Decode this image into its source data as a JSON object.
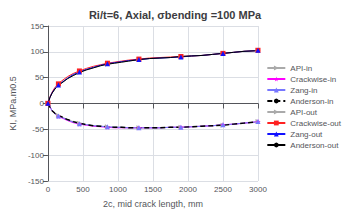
{
  "chart_data": {
    "type": "line",
    "title": "Ri/t=6, Axial, σbending =100 MPa",
    "xlabel": "2c, mid crack length, mm",
    "ylabel": "KI, MPa.m0.5",
    "x": [
      1,
      30,
      60,
      100,
      150,
      200,
      280,
      360,
      450,
      550,
      650,
      750,
      850,
      950,
      1050,
      1150,
      1300,
      1450,
      1600,
      1750,
      1900,
      2050,
      2200,
      2350,
      2500,
      2650,
      2800,
      2950,
      3000
    ],
    "series": [
      {
        "name": "API-in",
        "color": "#aaaaaa",
        "marker": "triangle_right",
        "line_style": "solid",
        "values": [
          0.3,
          -7,
          -14,
          -19,
          -23,
          -26,
          -31,
          -35,
          -38,
          -41,
          -43,
          -44,
          -45,
          -46,
          -46,
          -47,
          -47,
          -47,
          -47,
          -46,
          -46,
          -45,
          -44,
          -43,
          -42,
          -40,
          -38,
          -36,
          -35
        ]
      },
      {
        "name": "Crackwise-in",
        "color": "#ff00ff",
        "marker": "star",
        "line_style": "solid",
        "values": [
          0.3,
          -7,
          -14,
          -20,
          -25,
          -28,
          -33,
          -37,
          -40,
          -42,
          -44,
          -45,
          -46,
          -47,
          -47,
          -47,
          -47,
          -47,
          -47,
          -46,
          -46,
          -45,
          -44,
          -43,
          -41,
          -40,
          -38,
          -36,
          -35
        ]
      },
      {
        "name": "Zang-in",
        "color": "#7777ff",
        "marker": "triangle",
        "line_style": "solid",
        "values": [
          0.3,
          -7,
          -14,
          -20,
          -24,
          -27,
          -32,
          -36,
          -39,
          -41,
          -43,
          -44,
          -45,
          -46,
          -46,
          -47,
          -47,
          -47,
          -47,
          -46,
          -46,
          -45,
          -44,
          -43,
          -41,
          -40,
          -38,
          -36,
          -35
        ]
      },
      {
        "name": "Anderson-in",
        "color": "#000000",
        "marker": "none",
        "line_style": "dashed",
        "values": [
          0.3,
          -7,
          -14,
          -19,
          -23,
          -26,
          -31,
          -35,
          -38,
          -41,
          -43,
          -44,
          -45,
          -46,
          -46,
          -47,
          -47,
          -47,
          -47,
          -46,
          -46,
          -45,
          -44,
          -43,
          -42,
          -40,
          -38,
          -36,
          -35
        ]
      },
      {
        "name": "API-out",
        "color": "#aaaaaa",
        "marker": "triangle_right",
        "line_style": "solid",
        "values": [
          0.3,
          12,
          20,
          28,
          35,
          40,
          48,
          54,
          60,
          65,
          69,
          73,
          76,
          78,
          80,
          82,
          85,
          87,
          88,
          89,
          91,
          92,
          93,
          95,
          97,
          99,
          101,
          102,
          103
        ]
      },
      {
        "name": "Crackwise-out",
        "color": "#ff2222",
        "marker": "square",
        "line_style": "solid",
        "values": [
          0.3,
          13,
          22,
          31,
          38,
          44,
          52,
          58,
          63,
          68,
          72,
          75,
          78,
          80,
          82,
          84,
          86,
          88,
          89,
          90,
          91,
          92,
          93,
          95,
          97,
          99,
          101,
          102,
          103
        ]
      },
      {
        "name": "Zang-out",
        "color": "#1111ff",
        "marker": "triangle",
        "line_style": "solid",
        "values": [
          0.3,
          12,
          21,
          29,
          36,
          41,
          49,
          56,
          61,
          66,
          70,
          74,
          77,
          79,
          81,
          83,
          85,
          87,
          88,
          89,
          90,
          92,
          93,
          95,
          97,
          99,
          101,
          102,
          103
        ]
      },
      {
        "name": "Anderson-out",
        "color": "#000000",
        "marker": "none",
        "line_style": "solid",
        "values": [
          0.3,
          12,
          20,
          28,
          35,
          40,
          48,
          54,
          60,
          65,
          69,
          73,
          76,
          78,
          80,
          82,
          85,
          87,
          88,
          89,
          91,
          92,
          93,
          95,
          97,
          99,
          101,
          102,
          103
        ]
      }
    ],
    "xlim": [
      0,
      3000
    ],
    "ylim": [
      -150,
      150
    ],
    "xticks": [
      0,
      500,
      1000,
      1500,
      2000,
      2500,
      3000
    ],
    "yticks": [
      -150,
      -100,
      -50,
      0,
      50,
      100,
      150
    ],
    "grid": true,
    "legend": "right"
  }
}
